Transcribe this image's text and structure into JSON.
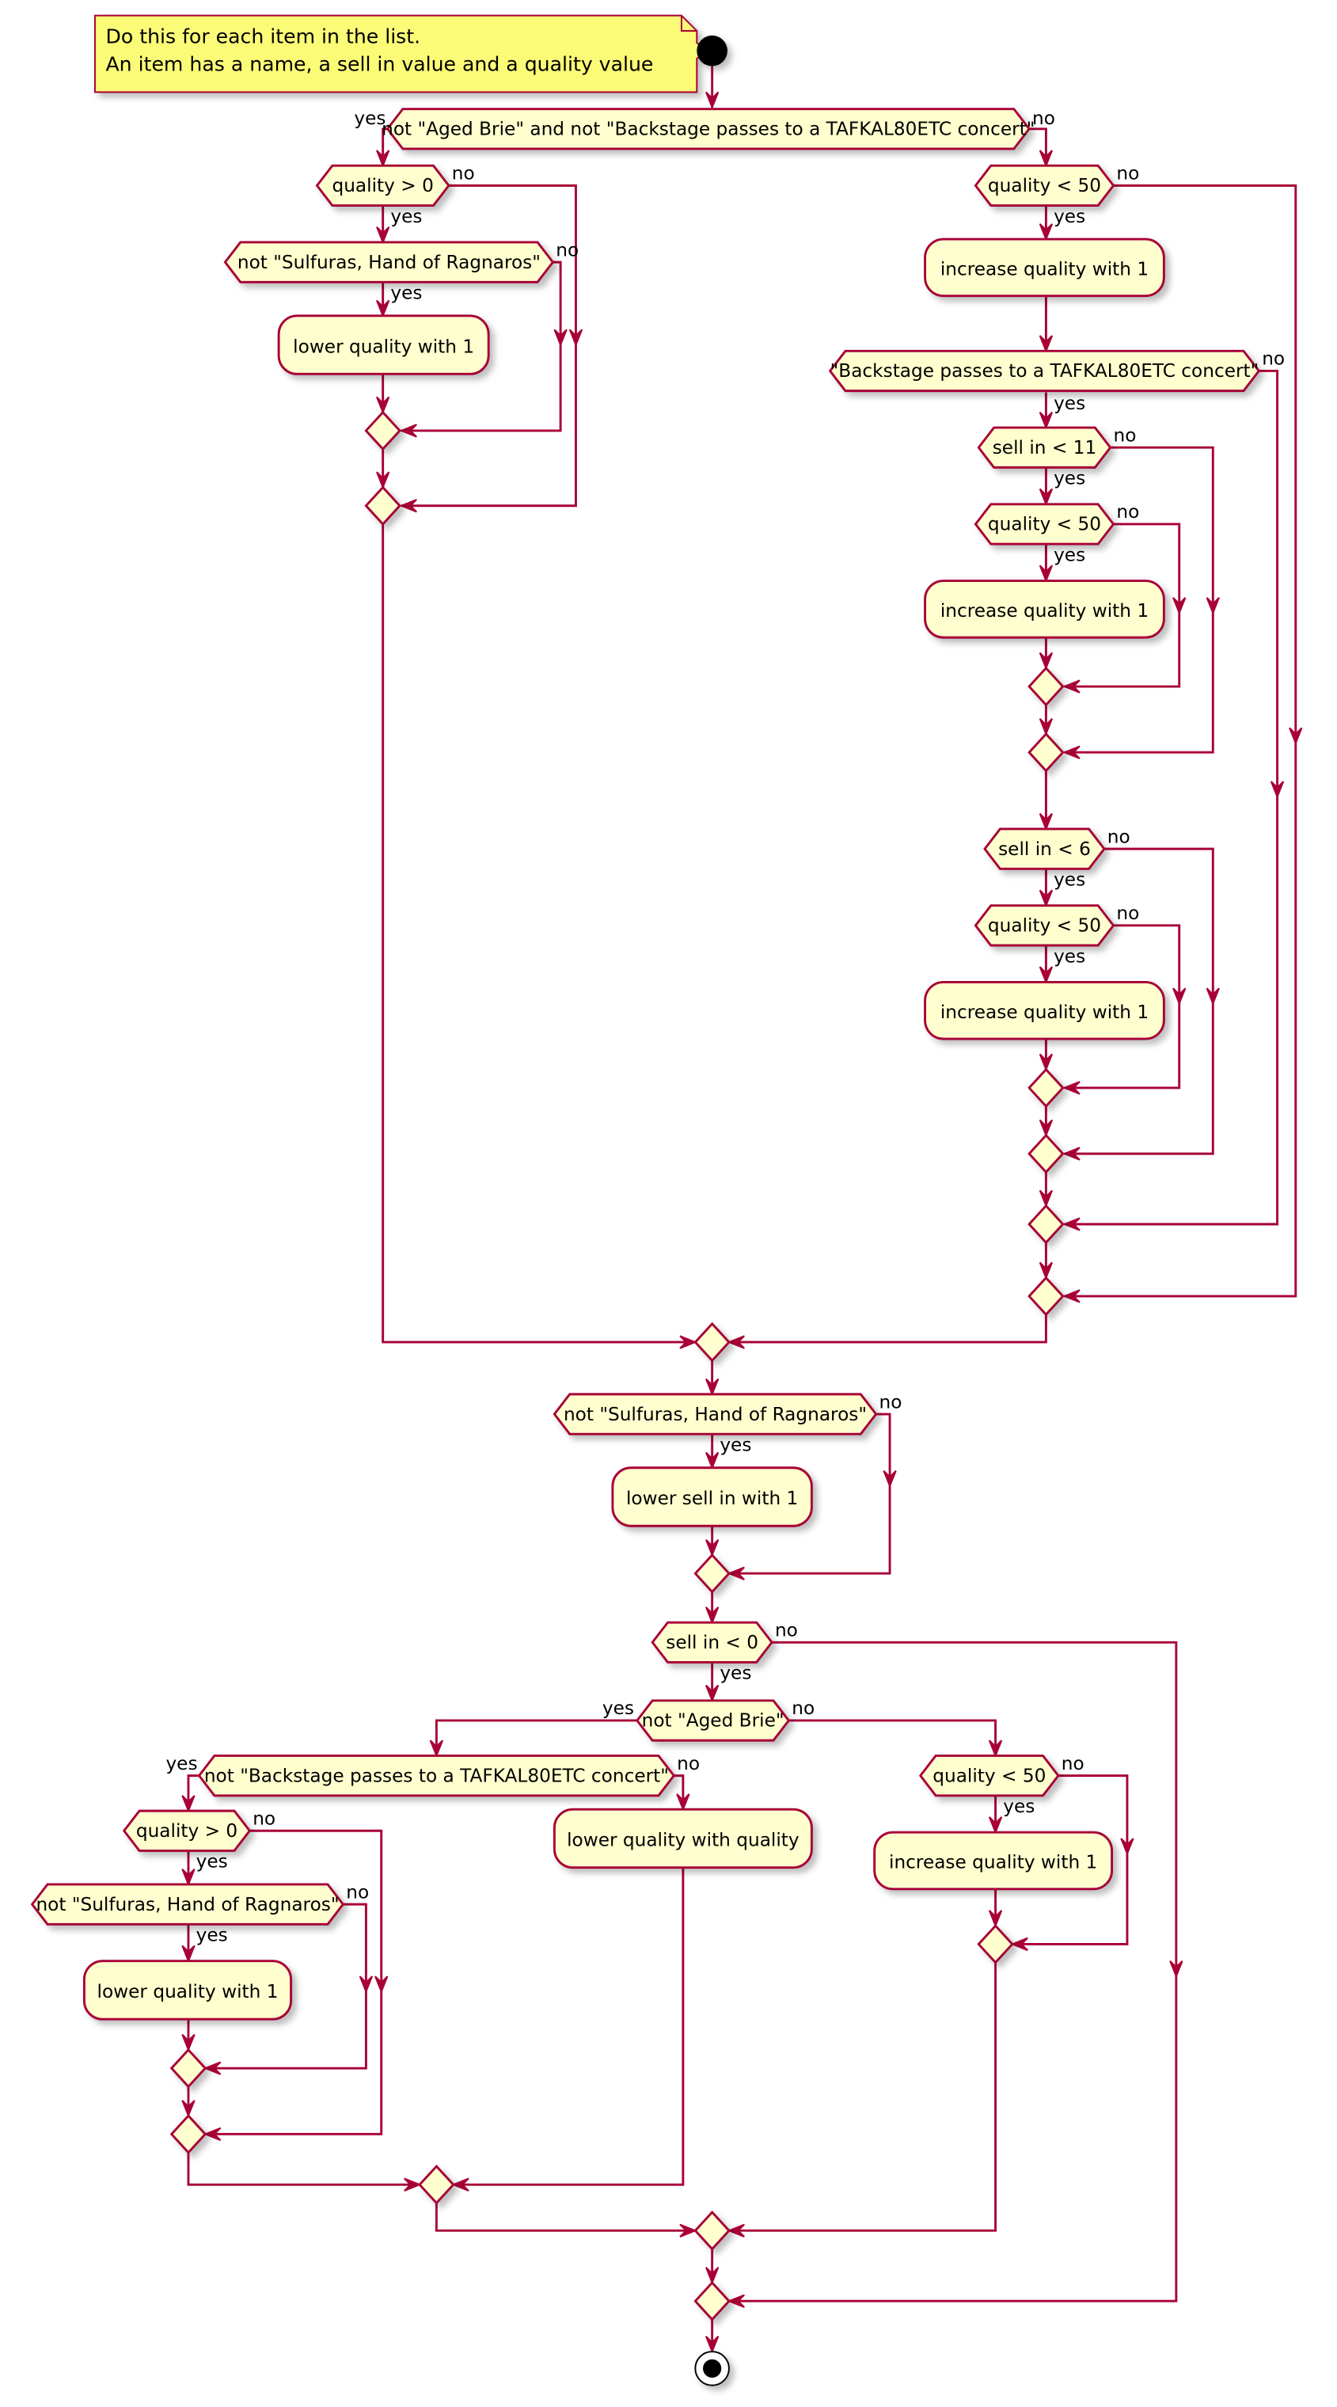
{
  "colors": {
    "stroke": "#A80036",
    "fill": "#FEFECE",
    "note_fill": "#FBFB77",
    "start": "#000000"
  },
  "note": {
    "line1": "Do this for each item in the list.",
    "line2": "An item has a name, a sell in value and a quality value"
  },
  "branch_labels": {
    "yes": "yes",
    "no": "no"
  },
  "decisions": {
    "d1": "not \"Aged Brie\" and not \"Backstage passes to a TAFKAL80ETC concert\"",
    "d2": "quality > 0",
    "d3": "not \"Sulfuras, Hand of Ragnaros\"",
    "d4": "quality < 50",
    "d5": "\"Backstage passes to a TAFKAL80ETC concert\"",
    "d6": "sell in < 11",
    "d7": "quality < 50",
    "d8": "sell in < 6",
    "d9": "quality < 50",
    "d10": "not \"Sulfuras, Hand of Ragnaros\"",
    "d11": "sell in < 0",
    "d12": "not \"Aged Brie\"",
    "d13": "not \"Backstage passes to a TAFKAL80ETC concert\"",
    "d14": "quality > 0",
    "d15": "not \"Sulfuras, Hand of Ragnaros\"",
    "d16": "quality < 50"
  },
  "actions": {
    "a1": "lower quality with 1",
    "a2": "increase quality with 1",
    "a3": "increase quality with 1",
    "a4": "increase quality with 1",
    "a5": "lower sell in with 1",
    "a6": "lower quality with 1",
    "a7": "lower quality with quality",
    "a8": "increase quality with 1"
  }
}
